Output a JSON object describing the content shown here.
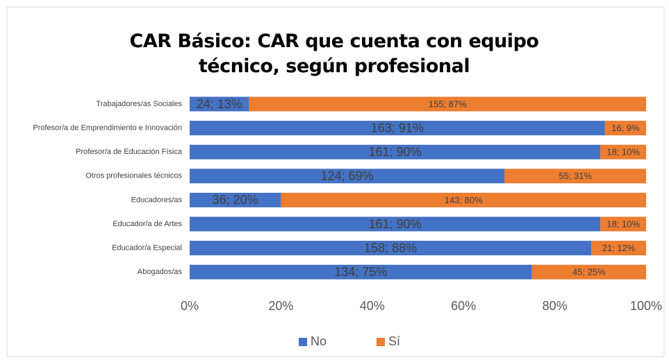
{
  "chart_data": {
    "type": "stacked_bar_horizontal",
    "title": "CAR Básico: CAR que cuenta con equipo técnico, según profesional",
    "categories": [
      "Trabajadores/as Sociales",
      "Profesor/a de Emprendimiento e Innovación",
      "Profesor/a de Educación Física",
      "Otros profesionales técnicos",
      "Educadores/as",
      "Educador/a de Artes",
      "Educador/a Especial",
      "Abogados/as"
    ],
    "series": [
      {
        "name": "No",
        "color": "#4472c4",
        "values": [
          13,
          91,
          90,
          69,
          20,
          90,
          88,
          75
        ],
        "value_labels": [
          "24; 13%",
          "163; 91%",
          "161; 90%",
          "124; 69%",
          "36; 20%",
          "161; 90%",
          "158; 88%",
          "134; 75%"
        ]
      },
      {
        "name": "Sí",
        "color": "#ed7d31",
        "values": [
          87,
          9,
          10,
          31,
          80,
          10,
          12,
          25
        ],
        "value_labels": [
          "155; 87%",
          "16; 9%",
          "18; 10%",
          "55; 31%",
          "143; 80%",
          "18; 10%",
          "21; 12%",
          "45; 25%"
        ]
      }
    ],
    "xlim": [
      0,
      100
    ],
    "xticks": [
      {
        "value": 0,
        "label": "0%"
      },
      {
        "value": 20,
        "label": "20%"
      },
      {
        "value": 40,
        "label": "40%"
      },
      {
        "value": 60,
        "label": "60%"
      },
      {
        "value": 80,
        "label": "80%"
      },
      {
        "value": 100,
        "label": "100%"
      }
    ],
    "legend": "bottom"
  }
}
